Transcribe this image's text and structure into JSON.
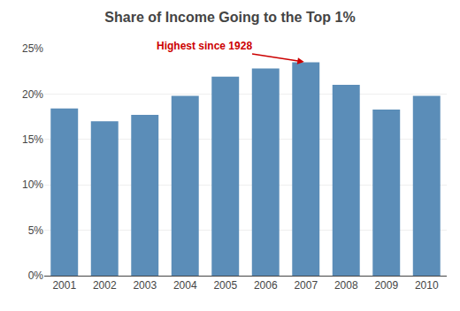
{
  "chart_data": {
    "type": "bar",
    "title": "Share of Income Going to the Top 1%",
    "categories": [
      "2001",
      "2002",
      "2003",
      "2004",
      "2005",
      "2006",
      "2007",
      "2008",
      "2009",
      "2010"
    ],
    "values": [
      18.4,
      17.0,
      17.7,
      19.8,
      21.9,
      22.8,
      23.5,
      21.0,
      18.3,
      19.8
    ],
    "color": "#5b8db8",
    "ylim": [
      0,
      25
    ],
    "yticks": [
      {
        "value": 0,
        "label": "0%"
      },
      {
        "value": 5,
        "label": "5%"
      },
      {
        "value": 10,
        "label": "10%"
      },
      {
        "value": 15,
        "label": "15%"
      },
      {
        "value": 20,
        "label": "20%"
      },
      {
        "value": 25,
        "label": "25%"
      }
    ],
    "grid": true,
    "annotations": [
      {
        "text": "Highest since 1928",
        "category": "2007",
        "color": "#cc0000"
      }
    ]
  }
}
